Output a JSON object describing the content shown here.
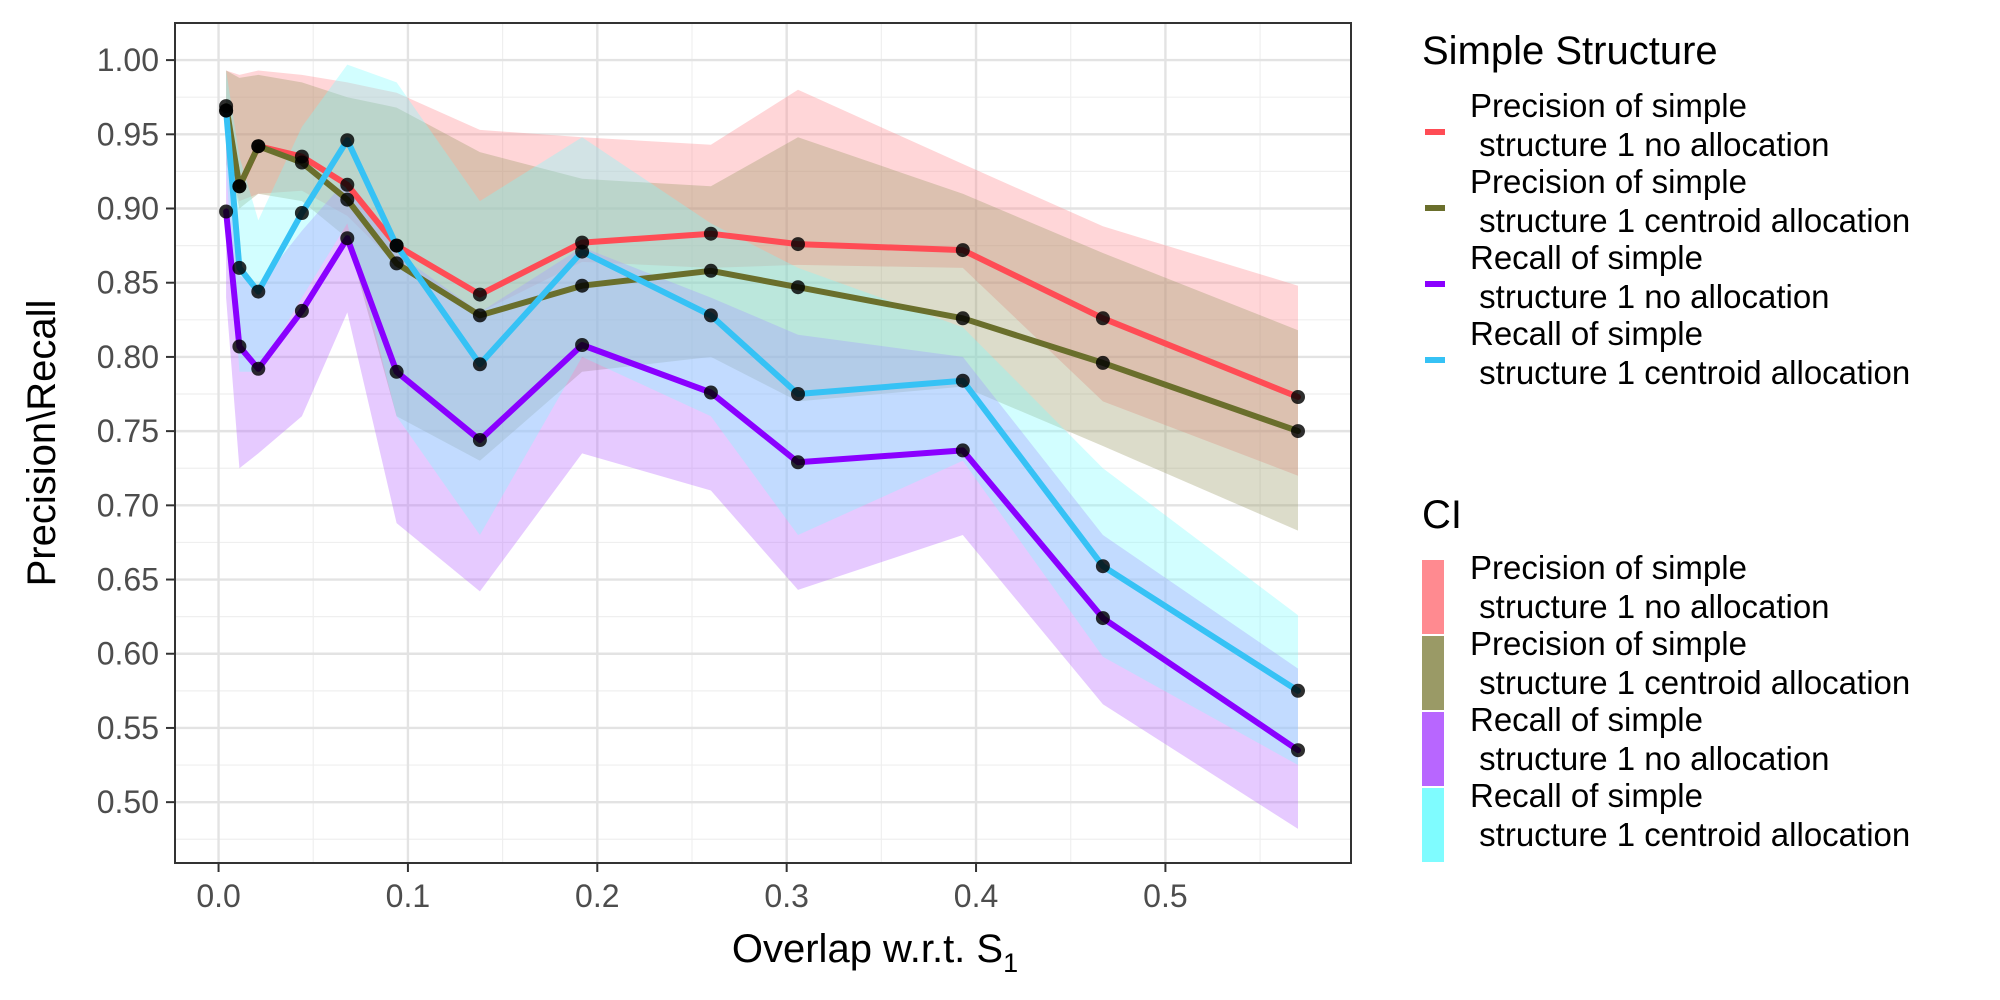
{
  "chart_data": {
    "type": "line",
    "xlabel": "Overlap w.r.t. S",
    "xlabel_subscript": "1",
    "ylabel": "Precision\\Recall",
    "xlim": [
      -0.023,
      0.598
    ],
    "ylim": [
      0.459,
      1.025
    ],
    "xticks": [
      0.0,
      0.1,
      0.2,
      0.3,
      0.4,
      0.5
    ],
    "xtick_labels": [
      "0.0",
      "0.1",
      "0.2",
      "0.3",
      "0.4",
      "0.5"
    ],
    "yticks": [
      0.5,
      0.55,
      0.6,
      0.65,
      0.7,
      0.75,
      0.8,
      0.85,
      0.9,
      0.95,
      1.0
    ],
    "ytick_labels": [
      "0.50",
      "0.55",
      "0.60",
      "0.65",
      "0.70",
      "0.75",
      "0.80",
      "0.85",
      "0.90",
      "0.95",
      "1.00"
    ],
    "x": [
      0.004,
      0.011,
      0.021,
      0.044,
      0.068,
      0.094,
      0.138,
      0.192,
      0.26,
      0.306,
      0.393,
      0.467,
      0.57
    ],
    "legend_line_title": "Simple Structure",
    "legend_ci_title": "CI",
    "series": [
      {
        "name": "Precision of simple structure 1 no allocation",
        "label_line1": "Precision of simple",
        "label_line2": " structure 1 no allocation",
        "color": "#ff4c55",
        "ci_color": "#ff8a90",
        "values": [
          0.966,
          0.915,
          0.942,
          0.935,
          0.916,
          0.875,
          0.842,
          0.877,
          0.883,
          0.876,
          0.872,
          0.826,
          0.773
        ],
        "lower": [
          0.93,
          0.905,
          0.91,
          0.912,
          0.895,
          0.862,
          0.83,
          0.864,
          0.86,
          0.862,
          0.86,
          0.77,
          0.72
        ],
        "upper": [
          0.993,
          0.99,
          0.993,
          0.99,
          0.985,
          0.978,
          0.953,
          0.948,
          0.943,
          0.98,
          0.93,
          0.888,
          0.848
        ]
      },
      {
        "name": "Precision of simple structure 1 centroid allocation",
        "label_line1": "Precision of simple",
        "label_line2": " structure 1 centroid allocation",
        "color": "#6a6f2c",
        "ci_color": "#9a9a66",
        "values": [
          0.969,
          0.915,
          0.942,
          0.931,
          0.906,
          0.863,
          0.828,
          0.848,
          0.858,
          0.847,
          0.826,
          0.796,
          0.75
        ],
        "lower": [
          0.94,
          0.9,
          0.91,
          0.905,
          0.88,
          0.76,
          0.73,
          0.79,
          0.8,
          0.77,
          0.78,
          0.74,
          0.683
        ],
        "upper": [
          0.993,
          0.988,
          0.99,
          0.985,
          0.975,
          0.968,
          0.938,
          0.92,
          0.915,
          0.948,
          0.91,
          0.87,
          0.818
        ]
      },
      {
        "name": "Recall of simple structure 1 no allocation",
        "label_line1": "Recall of simple",
        "label_line2": " structure 1 no allocation",
        "color": "#8a00ff",
        "ci_color": "#b866ff",
        "values": [
          0.898,
          0.807,
          0.792,
          0.831,
          0.88,
          0.79,
          0.744,
          0.808,
          0.776,
          0.729,
          0.737,
          0.624,
          0.535
        ],
        "lower": [
          0.84,
          0.725,
          0.735,
          0.76,
          0.83,
          0.688,
          0.642,
          0.735,
          0.71,
          0.643,
          0.68,
          0.566,
          0.482
        ],
        "upper": [
          0.96,
          0.855,
          0.848,
          0.885,
          0.92,
          0.87,
          0.83,
          0.874,
          0.84,
          0.815,
          0.8,
          0.68,
          0.59
        ]
      },
      {
        "name": "Recall of simple structure 1 centroid allocation",
        "label_line1": "Recall of simple",
        "label_line2": " structure 1 centroid allocation",
        "color": "#36c2f5",
        "ci_color": "#7ffcff",
        "values": [
          0.966,
          0.86,
          0.844,
          0.897,
          0.946,
          0.875,
          0.795,
          0.871,
          0.828,
          0.775,
          0.784,
          0.659,
          0.575
        ],
        "lower": [
          0.93,
          0.79,
          0.79,
          0.84,
          0.89,
          0.76,
          0.68,
          0.8,
          0.76,
          0.68,
          0.73,
          0.598,
          0.525
        ],
        "upper": [
          0.993,
          0.935,
          0.892,
          0.955,
          0.997,
          0.985,
          0.905,
          0.948,
          0.89,
          0.86,
          0.82,
          0.725,
          0.626
        ]
      }
    ]
  }
}
